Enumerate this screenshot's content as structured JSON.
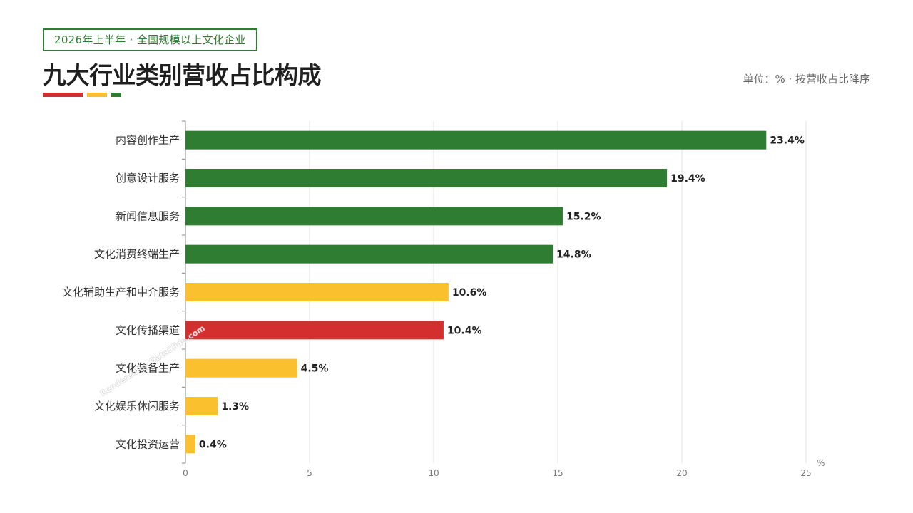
{
  "header": {
    "tag": "2026年上半年 · 全国规模以上文化企业",
    "title": "九大行业类别营收占比构成",
    "unit_note": "单位：% · 按营收占比降序"
  },
  "accent_colors": [
    "#d32f2f",
    "#fbc02d",
    "#2e7d32"
  ],
  "watermark": "Rendered by DataSlide.com",
  "chart_data": {
    "type": "bar",
    "orientation": "horizontal",
    "title": "九大行业类别营收占比构成",
    "xlabel": "%",
    "ylabel": "",
    "xlim": [
      0,
      25
    ],
    "xticks": [
      0,
      5,
      10,
      15,
      20,
      25
    ],
    "grid": true,
    "value_suffix": "%",
    "categories": [
      "内容创作生产",
      "创意设计服务",
      "新闻信息服务",
      "文化消费终端生产",
      "文化辅助生产和中介服务",
      "文化传播渠道",
      "文化装备生产",
      "文化娱乐休闲服务",
      "文化投资运营"
    ],
    "values": [
      23.4,
      19.4,
      15.2,
      14.8,
      10.6,
      10.4,
      4.5,
      1.3,
      0.4
    ],
    "colors": [
      "#2e7d32",
      "#2e7d32",
      "#2e7d32",
      "#2e7d32",
      "#fbc02d",
      "#d32f2f",
      "#fbc02d",
      "#fbc02d",
      "#fbc02d"
    ]
  }
}
